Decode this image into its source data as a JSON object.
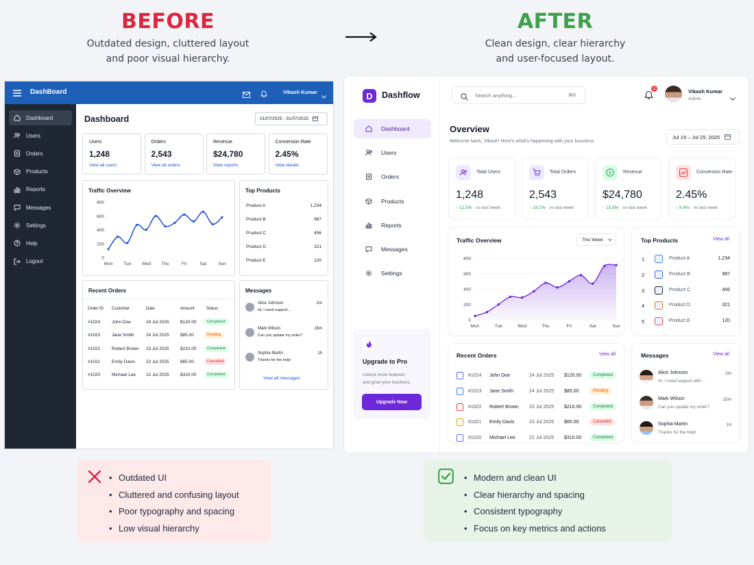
{
  "before": {
    "title": "BEFORE",
    "subtitle_line1": "Outdated design, cluttered layout",
    "subtitle_line2": "and poor visual hierarchy.",
    "color": "#dc2640",
    "dashboard": {
      "brand": "DashBoard",
      "user": "Vikash Kumar",
      "accent": "#1e5fb8",
      "sidebar": [
        {
          "label": "Dashboard",
          "icon": "home-icon"
        },
        {
          "label": "Users",
          "icon": "users-icon"
        },
        {
          "label": "Orders",
          "icon": "orders-icon"
        },
        {
          "label": "Products",
          "icon": "products-icon"
        },
        {
          "label": "Reports",
          "icon": "reports-icon"
        },
        {
          "label": "Messages",
          "icon": "messages-icon"
        },
        {
          "label": "Settings",
          "icon": "settings-icon"
        },
        {
          "label": "Help",
          "icon": "help-icon"
        },
        {
          "label": "Logout",
          "icon": "logout-icon"
        }
      ],
      "page_title": "Dashboard",
      "date_range": "01/07/2025 - 31/07/2025",
      "stats": [
        {
          "label": "Users",
          "value": "1,248",
          "link": "View all users"
        },
        {
          "label": "Orders",
          "value": "2,543",
          "link": "View all orders"
        },
        {
          "label": "Revenue",
          "value": "$24,780",
          "link": "View reports"
        },
        {
          "label": "Conversion Rate",
          "value": "2.45%",
          "link": "View details"
        }
      ],
      "traffic_title": "Traffic Overview",
      "top_products": {
        "title": "Top Products",
        "items": [
          {
            "name": "Product A",
            "value": "1,234"
          },
          {
            "name": "Product B",
            "value": "987"
          },
          {
            "name": "Product C",
            "value": "456"
          },
          {
            "name": "Product D",
            "value": "321"
          },
          {
            "name": "Product E",
            "value": "120"
          }
        ]
      },
      "recent_orders": {
        "title": "Recent Orders",
        "columns": [
          "Order ID",
          "Customer",
          "Date",
          "Amount",
          "Status"
        ],
        "rows": [
          {
            "id": "#1024",
            "customer": "John Doe",
            "date": "24 Jul 2025",
            "amount": "$120.00",
            "status": "Completed"
          },
          {
            "id": "#1023",
            "customer": "Jane Smith",
            "date": "24 Jul 2025",
            "amount": "$85.00",
            "status": "Pending"
          },
          {
            "id": "#1022",
            "customer": "Robert Brown",
            "date": "23 Jul 2025",
            "amount": "$210.00",
            "status": "Completed"
          },
          {
            "id": "#1021",
            "customer": "Emily Davis",
            "date": "23 Jul 2025",
            "amount": "$65.00",
            "status": "Cancelled"
          },
          {
            "id": "#1020",
            "customer": "Michael Lee",
            "date": "22 Jul 2025",
            "amount": "$310.00",
            "status": "Completed"
          }
        ]
      },
      "messages": {
        "title": "Messages",
        "items": [
          {
            "name": "Alice Johnson",
            "text": "Hi, I need support...",
            "time": "2m"
          },
          {
            "name": "Mark Wilson",
            "text": "Can you update my order?",
            "time": "15m"
          },
          {
            "name": "Sophia Martin",
            "text": "Thanks for the help!",
            "time": "1h"
          }
        ],
        "link": "View all messages"
      }
    },
    "points": [
      "Outdated UI",
      "Cluttered and confusing layout",
      "Poor typography and spacing",
      "Low visual hierarchy"
    ]
  },
  "after": {
    "title": "AFTER",
    "subtitle_line1": "Clean design, clear hierarchy",
    "subtitle_line2": "and user-focused layout.",
    "color": "#3ea04a",
    "dashboard": {
      "brand": "Dashflow",
      "logo_letter": "D",
      "accent": "#6d28d9",
      "search_placeholder": "Search anything...",
      "search_shortcut": "⌘K",
      "notif_count": "3",
      "user_name": "Vikash Kumar",
      "user_role": "Admin",
      "sidebar": [
        {
          "label": "Dashboard",
          "icon": "home-icon"
        },
        {
          "label": "Users",
          "icon": "users-icon"
        },
        {
          "label": "Orders",
          "icon": "orders-icon"
        },
        {
          "label": "Products",
          "icon": "products-icon"
        },
        {
          "label": "Reports",
          "icon": "reports-icon"
        },
        {
          "label": "Messages",
          "icon": "messages-icon"
        },
        {
          "label": "Settings",
          "icon": "settings-icon"
        }
      ],
      "upgrade": {
        "title": "Upgrade to Pro",
        "text1": "Unlock more features",
        "text2": "and grow your business.",
        "button": "Upgrade Now"
      },
      "overview_title": "Overview",
      "welcome": "Welcome back, Vikash! Here's what's happening with your business.",
      "date_range": "Jul 19 – Jul 25, 2025",
      "stats": [
        {
          "label": "Total Users",
          "value": "1,248",
          "delta": "↑ 12.5%",
          "note": "vs last week",
          "icon": "users-icon",
          "bg": "#ede9fe",
          "fg": "#6d28d9"
        },
        {
          "label": "Total Orders",
          "value": "2,543",
          "delta": "↑ 18.2%",
          "note": "vs last week",
          "icon": "cart-icon",
          "bg": "#ede9fe",
          "fg": "#6d28d9"
        },
        {
          "label": "Revenue",
          "value": "$24,780",
          "delta": "↑ 15.8%",
          "note": "vs last week",
          "icon": "dollar-icon",
          "bg": "#dcfce7",
          "fg": "#16a34a"
        },
        {
          "label": "Conversion Rate",
          "value": "2.45%",
          "delta": "↑ 8.4%",
          "note": "vs last week",
          "icon": "trend-icon",
          "bg": "#fee2e2",
          "fg": "#dc2626"
        }
      ],
      "traffic_title": "Traffic Overview",
      "traffic_period": "This Week",
      "top_products": {
        "title": "Top Products",
        "link": "View all",
        "items": [
          {
            "rank": "1",
            "name": "Product A",
            "value": "1,234",
            "color": "#3b82f6"
          },
          {
            "rank": "2",
            "name": "Product B",
            "value": "987",
            "color": "#2563eb"
          },
          {
            "rank": "3",
            "name": "Product C",
            "value": "456",
            "color": "#111827"
          },
          {
            "rank": "4",
            "name": "Product D",
            "value": "321",
            "color": "#d97706"
          },
          {
            "rank": "5",
            "name": "Product E",
            "value": "120",
            "color": "#ef4444"
          }
        ]
      },
      "recent_orders": {
        "title": "Recent Orders",
        "link": "View all",
        "rows": [
          {
            "id": "#1024",
            "customer": "John Doe",
            "date": "24 Jul 2025",
            "amount": "$120.00",
            "status": "Completed",
            "color": "#6366f1"
          },
          {
            "id": "#1023",
            "customer": "Jane Smith",
            "date": "24 Jul 2025",
            "amount": "$85.00",
            "status": "Pending",
            "color": "#3b82f6"
          },
          {
            "id": "#1022",
            "customer": "Robert Brown",
            "date": "23 Jul 2025",
            "amount": "$210.00",
            "status": "Completed",
            "color": "#ef4444"
          },
          {
            "id": "#1021",
            "customer": "Emily Davis",
            "date": "23 Jul 2025",
            "amount": "$65.00",
            "status": "Cancelled",
            "color": "#f59e0b"
          },
          {
            "id": "#1020",
            "customer": "Michael Lee",
            "date": "22 Jul 2025",
            "amount": "$310.00",
            "status": "Completed",
            "color": "#6366f1"
          }
        ]
      },
      "messages": {
        "title": "Messages",
        "link": "View all",
        "items": [
          {
            "name": "Alice Johnson",
            "text": "Hi, I need support with...",
            "time": "2m"
          },
          {
            "name": "Mark Wilson",
            "text": "Can you update my order?",
            "time": "15m"
          },
          {
            "name": "Sophia Martin",
            "text": "Thanks for the help!",
            "time": "1h"
          }
        ]
      }
    },
    "points": [
      "Modern and clean UI",
      "Clear hierarchy and spacing",
      "Consistent typography",
      "Focus on key metrics and actions"
    ]
  },
  "chart_data": [
    {
      "type": "line",
      "title": "Traffic Overview",
      "categories": [
        "Mon",
        "Tue",
        "Wed",
        "Thu",
        "Fri",
        "Sat",
        "Sun"
      ],
      "yticks": [
        0,
        200,
        400,
        600,
        800
      ],
      "ylim": [
        0,
        800
      ],
      "x": [
        0,
        0.5,
        1,
        1.5,
        2,
        2.5,
        3,
        3.5,
        4,
        4.5,
        5,
        5.5,
        6
      ],
      "values": [
        120,
        300,
        210,
        470,
        400,
        600,
        450,
        500,
        620,
        520,
        660,
        480,
        580
      ],
      "color": "#1d4ed8",
      "area": false
    },
    {
      "type": "area",
      "title": "Traffic Overview",
      "categories": [
        "Mon",
        "Tue",
        "Wed",
        "Thu",
        "Fri",
        "Sat",
        "Sun"
      ],
      "yticks": [
        0,
        200,
        400,
        600,
        800
      ],
      "ylim": [
        0,
        800
      ],
      "x": [
        0,
        0.5,
        1,
        1.5,
        2,
        2.5,
        3,
        3.5,
        4,
        4.5,
        5,
        5.5,
        6
      ],
      "values": [
        50,
        100,
        200,
        300,
        290,
        370,
        480,
        420,
        500,
        580,
        470,
        700,
        710
      ],
      "color": "#6d28d9",
      "area": true
    }
  ]
}
